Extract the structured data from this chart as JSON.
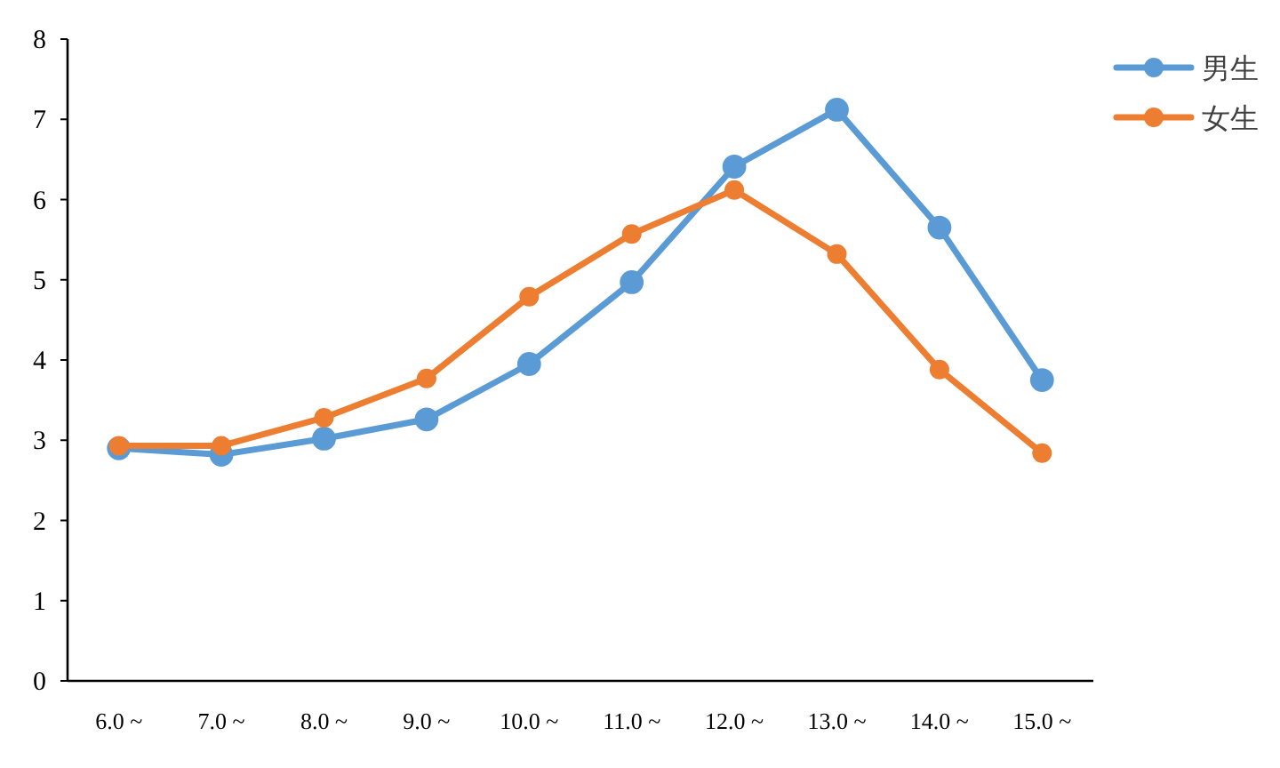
{
  "chart_data": {
    "type": "line",
    "categories": [
      "6.0 ~",
      "7.0 ~",
      "8.0 ~",
      "9.0 ~",
      "10.0 ~",
      "11.0 ~",
      "12.0 ~",
      "13.0 ~",
      "14.0 ~",
      "15.0 ~"
    ],
    "series": [
      {
        "name": "男生",
        "color": "#5b9bd5",
        "values": [
          2.9,
          2.82,
          3.02,
          3.26,
          3.95,
          4.97,
          6.41,
          7.12,
          5.65,
          3.75
        ]
      },
      {
        "name": "女生",
        "color": "#ed7d31",
        "values": [
          2.93,
          2.93,
          3.28,
          3.77,
          4.79,
          5.57,
          6.12,
          5.32,
          3.88,
          2.84
        ]
      }
    ],
    "ylim": [
      0,
      8
    ],
    "yticks": [
      0,
      1,
      2,
      3,
      4,
      5,
      6,
      7,
      8
    ],
    "legend": "top right",
    "marker": "circle",
    "line_style": "solid",
    "grid": false
  }
}
